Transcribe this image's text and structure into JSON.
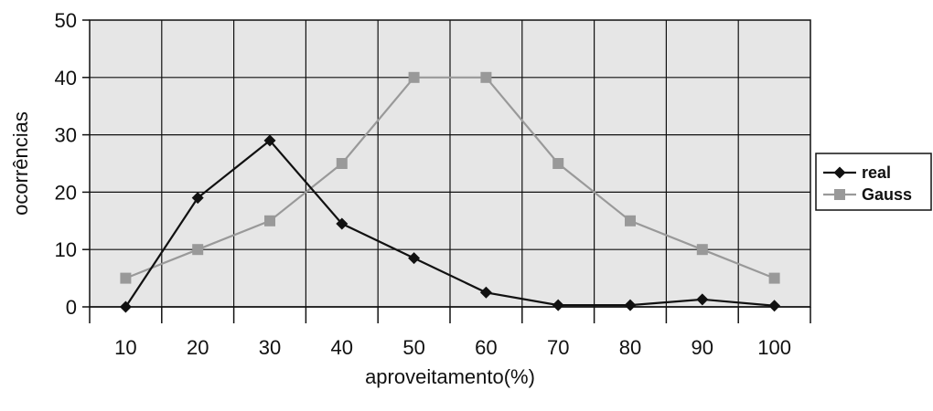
{
  "chart_data": {
    "type": "line",
    "title": "",
    "xlabel": "aproveitamento(%)",
    "ylabel": "ocorrências",
    "categories": [
      "10",
      "20",
      "30",
      "40",
      "50",
      "60",
      "70",
      "80",
      "90",
      "100"
    ],
    "ylim": [
      0,
      50
    ],
    "yticks": [
      0,
      10,
      20,
      30,
      40,
      50
    ],
    "grid": true,
    "legend": "right",
    "series": [
      {
        "name": "real",
        "color": "#111111",
        "marker": "diamond",
        "values": [
          0,
          19,
          29,
          14.5,
          8.5,
          2.5,
          0.3,
          0.3,
          1.3,
          0.2
        ]
      },
      {
        "name": "Gauss",
        "color": "#999999",
        "marker": "square",
        "values": [
          5,
          10,
          15,
          25,
          40,
          40,
          25,
          15,
          10,
          5
        ]
      }
    ]
  }
}
